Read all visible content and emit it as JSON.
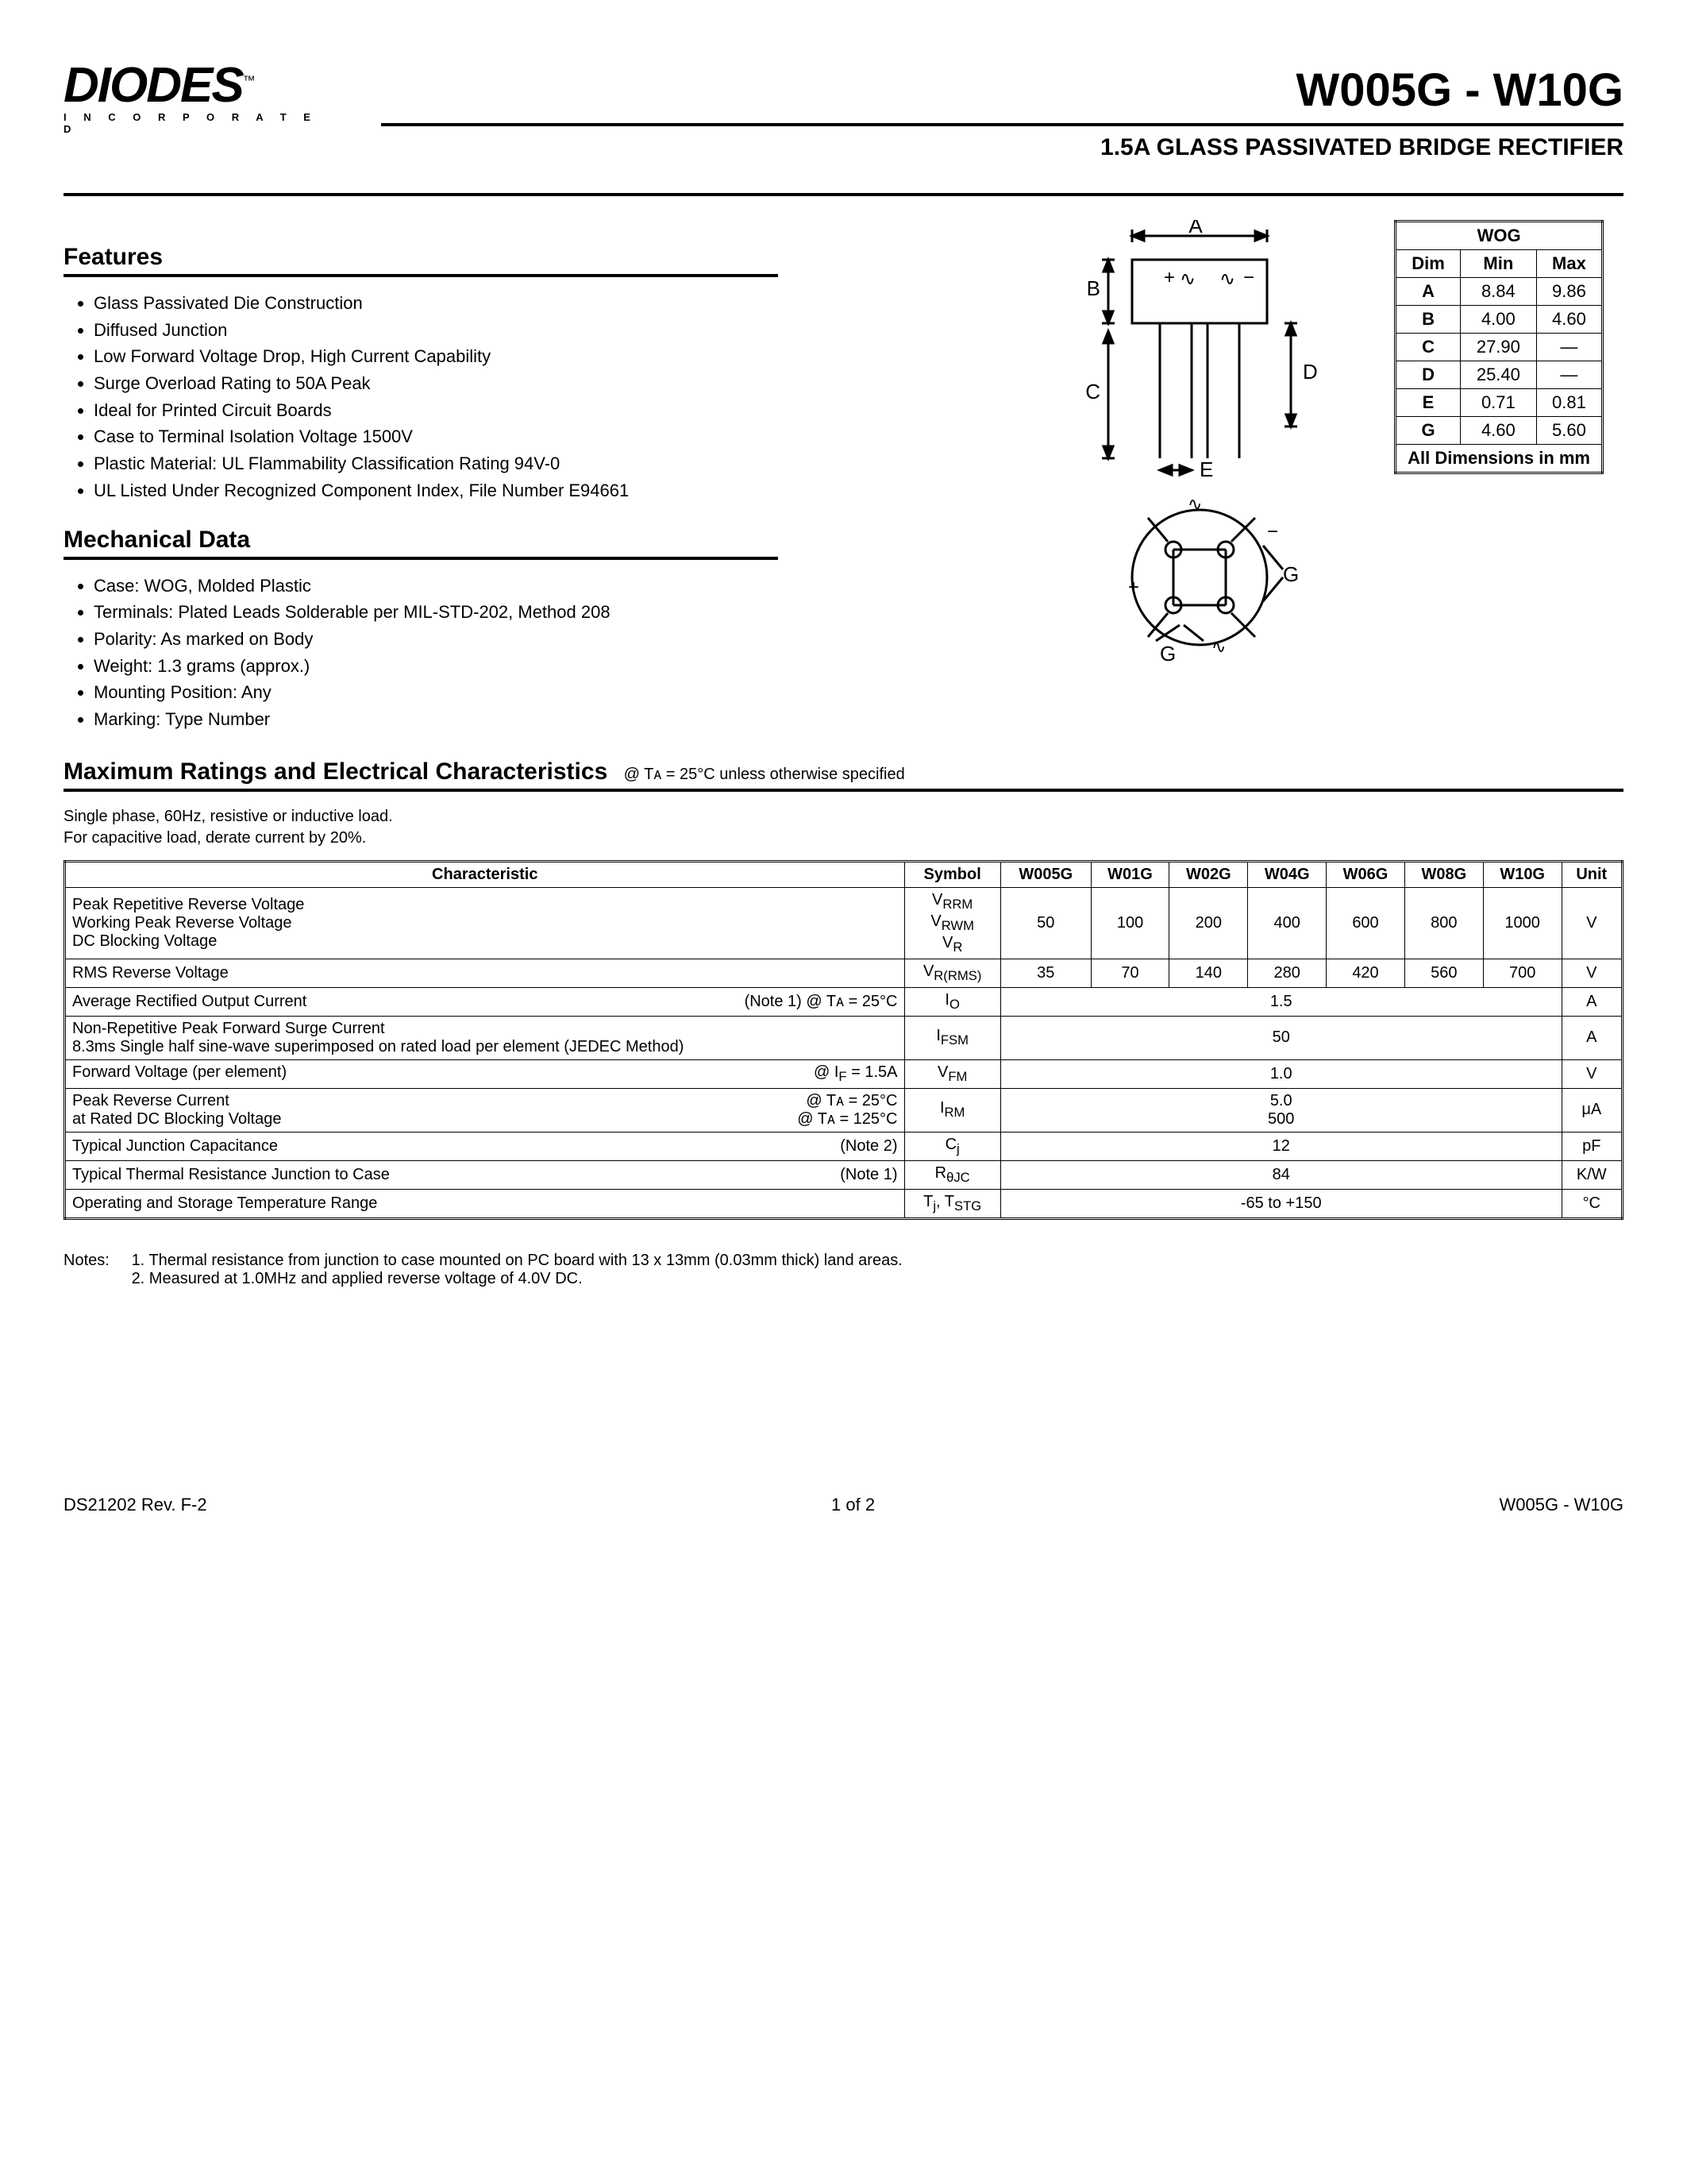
{
  "logo": {
    "name": "DIODES",
    "sub": "I N C O R P O R A T E D"
  },
  "title": "W005G - W10G",
  "subtitle": "1.5A GLASS PASSIVATED BRIDGE RECTIFIER",
  "sections": {
    "features": "Features",
    "mechanical": "Mechanical Data",
    "ratings": "Maximum Ratings and Electrical Characteristics",
    "ratings_cond": "@ Tᴀ = 25°C unless otherwise specified"
  },
  "features": [
    "Glass Passivated Die Construction",
    "Diffused Junction",
    "Low Forward Voltage Drop, High Current Capability",
    "Surge Overload Rating to 50A Peak",
    "Ideal for Printed Circuit Boards",
    "Case to Terminal Isolation Voltage 1500V",
    "Plastic Material: UL Flammability Classification Rating 94V-0",
    "UL Listed Under Recognized Component Index, File Number E94661"
  ],
  "mechanical": [
    "Case: WOG, Molded Plastic",
    "Terminals: Plated Leads Solderable per MIL-STD-202, Method 208",
    "Polarity: As marked on Body",
    "Weight: 1.3 grams (approx.)",
    "Mounting Position: Any",
    "Marking: Type Number"
  ],
  "dim_table": {
    "title": "WOG",
    "headers": [
      "Dim",
      "Min",
      "Max"
    ],
    "rows": [
      [
        "A",
        "8.84",
        "9.86"
      ],
      [
        "B",
        "4.00",
        "4.60"
      ],
      [
        "C",
        "27.90",
        "—"
      ],
      [
        "D",
        "25.40",
        "—"
      ],
      [
        "E",
        "0.71",
        "0.81"
      ],
      [
        "G",
        "4.60",
        "5.60"
      ]
    ],
    "caption": "All Dimensions in mm"
  },
  "diagram": {
    "labels": {
      "A": "A",
      "B": "B",
      "C": "C",
      "D": "D",
      "E": "E",
      "G": "G"
    }
  },
  "ratings_intro": "Single phase, 60Hz, resistive or inductive load.\nFor capacitive load, derate current by 20%.",
  "ratings_headers": [
    "Characteristic",
    "Symbol",
    "W005G",
    "W01G",
    "W02G",
    "W04G",
    "W06G",
    "W08G",
    "W10G",
    "Unit"
  ],
  "ratings_rows": [
    {
      "char": "Peak Repetitive Reverse Voltage\nWorking Peak Reverse Voltage\nDC Blocking Voltage",
      "cond": "",
      "symbol": "V<sub>RRM</sub><br>V<sub>RWM</sub><br>V<sub>R</sub>",
      "vals": [
        "50",
        "100",
        "200",
        "400",
        "600",
        "800",
        "1000"
      ],
      "unit": "V"
    },
    {
      "char": "RMS Reverse Voltage",
      "cond": "",
      "symbol": "V<sub>R(RMS)</sub>",
      "vals": [
        "35",
        "70",
        "140",
        "280",
        "420",
        "560",
        "700"
      ],
      "unit": "V"
    },
    {
      "char": "Average Rectified Output Current",
      "cond": "(Note 1) @ Tᴀ = 25°C",
      "symbol": "I<sub>O</sub>",
      "span": "1.5",
      "unit": "A"
    },
    {
      "char": "Non-Repetitive Peak Forward Surge Current\n8.3ms Single half sine-wave superimposed on rated load per element (JEDEC Method)",
      "cond": "",
      "symbol": "I<sub>FSM</sub>",
      "span": "50",
      "unit": "A"
    },
    {
      "char": "Forward Voltage (per element)",
      "cond": "@ I<sub>F</sub> = 1.5A",
      "symbol": "V<sub>FM</sub>",
      "span": "1.0",
      "unit": "V"
    },
    {
      "char": "Peak Reverse Current\nat Rated DC Blocking Voltage",
      "cond": "@ Tᴀ =  25°C\n@ Tᴀ = 125°C",
      "symbol": "I<sub>RM</sub>",
      "span": "5.0\n500",
      "unit": "μA"
    },
    {
      "char": "Typical Junction Capacitance",
      "cond": "(Note 2)",
      "symbol": "C<sub>j</sub>",
      "span": "12",
      "unit": "pF"
    },
    {
      "char": "Typical Thermal Resistance Junction to Case",
      "cond": "(Note 1)",
      "symbol": "R<sub>θJC</sub>",
      "span": "84",
      "unit": "K/W"
    },
    {
      "char": "Operating and Storage Temperature Range",
      "cond": "",
      "symbol": "T<sub>j</sub>, T<sub>STG</sub>",
      "span": "-65 to +150",
      "unit": "°C"
    }
  ],
  "notes_label": "Notes:",
  "notes": [
    "1. Thermal resistance from junction to case mounted on PC board with 13 x 13mm (0.03mm thick) land areas.",
    "2. Measured at 1.0MHz and applied reverse voltage of 4.0V DC."
  ],
  "footer": {
    "left": "DS21202 Rev. F-2",
    "center": "1 of 2",
    "right": "W005G - W10G"
  }
}
